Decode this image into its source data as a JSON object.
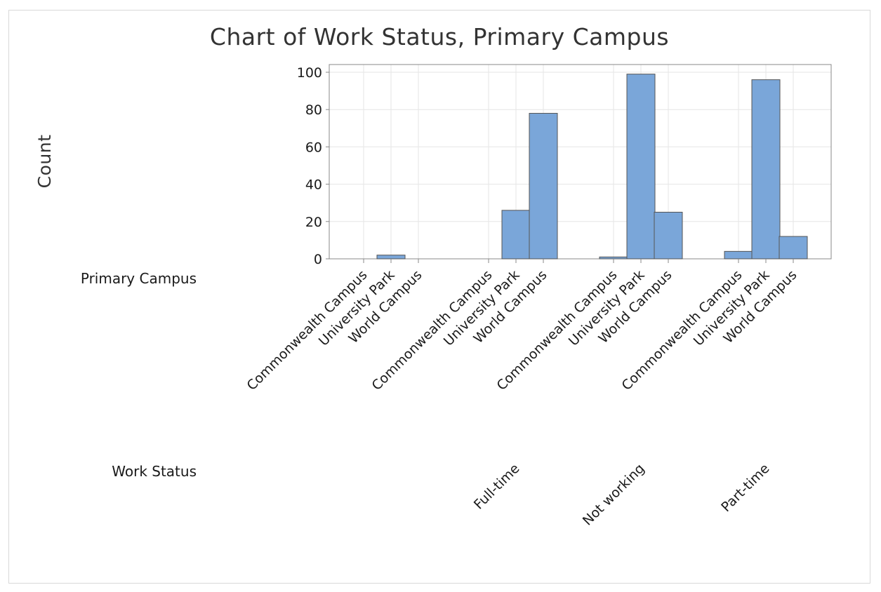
{
  "colors": {
    "bar": "#7aa6d9",
    "axis": "#888888",
    "grid": "#e6e6e6"
  },
  "row_labels": {
    "primary_campus": "Primary Campus",
    "work_status": "Work Status"
  },
  "chart_data": {
    "type": "bar",
    "title": "Chart of Work Status, Primary Campus",
    "ylabel": "Count",
    "xlabel": "",
    "ylim": [
      0,
      100
    ],
    "yticks": [
      0,
      20,
      40,
      60,
      80,
      100
    ],
    "grid": true,
    "groups": [
      {
        "name": "",
        "categories": [
          "Commonwealth Campus",
          "University Park",
          "World Campus"
        ],
        "values": [
          0,
          2,
          0
        ]
      },
      {
        "name": "Full-time",
        "categories": [
          "Commonwealth Campus",
          "University Park",
          "World Campus"
        ],
        "values": [
          0,
          26,
          78
        ]
      },
      {
        "name": "Not working",
        "categories": [
          "Commonwealth Campus",
          "University Park",
          "World Campus"
        ],
        "values": [
          1,
          99,
          25
        ]
      },
      {
        "name": "Part-time",
        "categories": [
          "Commonwealth Campus",
          "University Park",
          "World Campus"
        ],
        "values": [
          4,
          96,
          12
        ]
      }
    ]
  }
}
